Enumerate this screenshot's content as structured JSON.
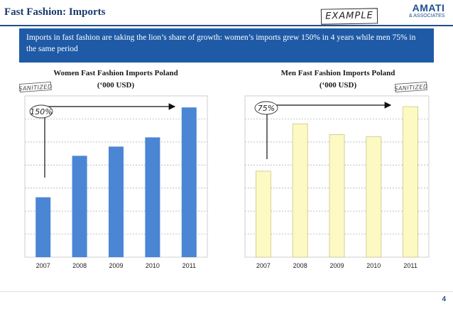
{
  "header": {
    "title": "Fast Fashion: Imports",
    "example_stamp": "EXAMPLE",
    "logo_name": "AMATI",
    "logo_sub": "& ASSOCIATES"
  },
  "banner": {
    "text": "Imports in fast fashion are taking the lion’s share of growth: women’s imports grew 150% in 4 years while men 75% in the same period"
  },
  "page_number": "4",
  "colors": {
    "accent": "#1f5aa6",
    "women_bar": "#4a86d4",
    "men_bar": "#fdf9c2",
    "men_bar_border": "#c9c68a"
  },
  "chart_data": [
    {
      "type": "bar",
      "title": "Women Fast Fashion Imports Poland",
      "subtitle": "(‘000 USD)",
      "stamp": "SANITIZED",
      "annotation": "150%",
      "categories": [
        "2007",
        "2008",
        "2009",
        "2010",
        "2011"
      ],
      "values": [
        2.6,
        4.4,
        4.8,
        5.2,
        6.5
      ],
      "ylim": [
        0,
        7
      ],
      "grid": true,
      "xlabel": "",
      "ylabel": ""
    },
    {
      "type": "bar",
      "title": "Men Fast Fashion Imports Poland",
      "subtitle": "(‘000 USD)",
      "stamp": "SANITIZED",
      "annotation": "75%",
      "categories": [
        "2007",
        "2008",
        "2009",
        "2010",
        "2011"
      ],
      "values": [
        4.0,
        6.2,
        5.7,
        5.6,
        7.0
      ],
      "ylim": [
        0,
        7.5
      ],
      "grid": true,
      "xlabel": "",
      "ylabel": ""
    }
  ]
}
